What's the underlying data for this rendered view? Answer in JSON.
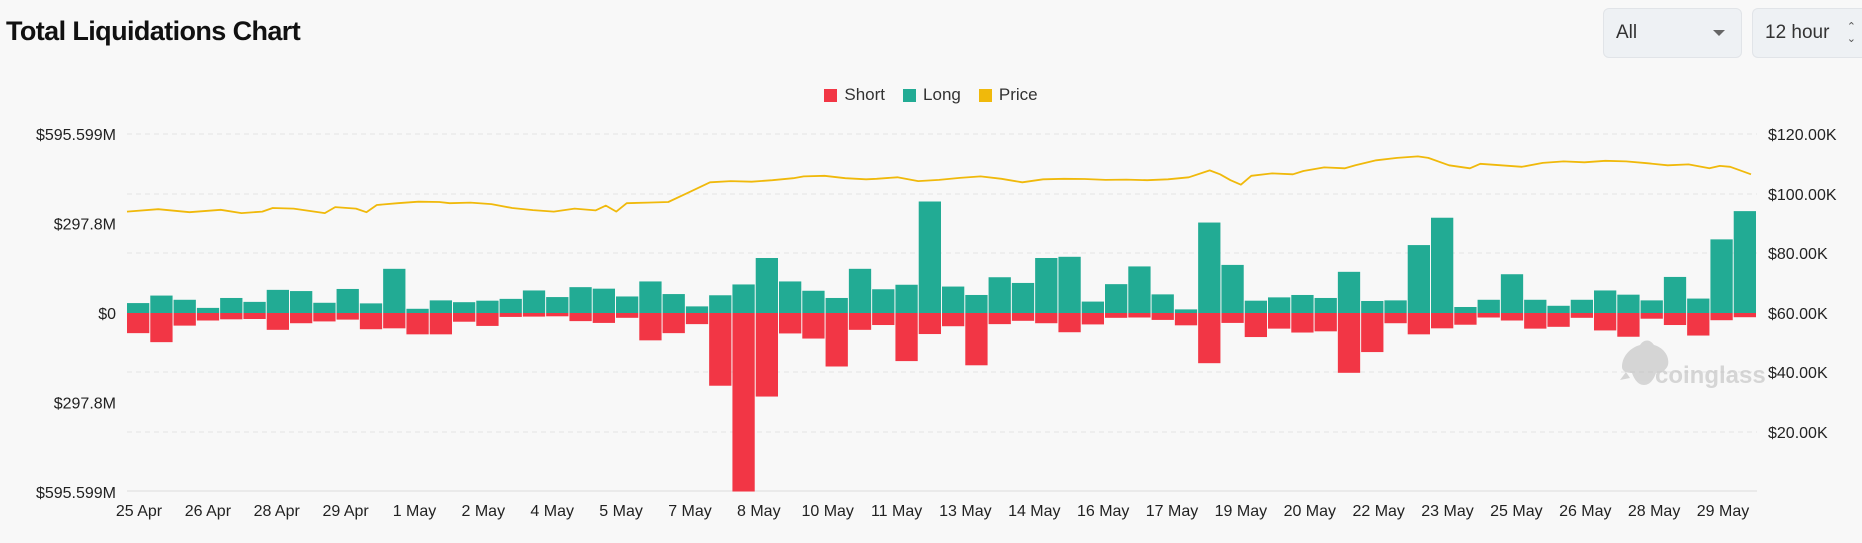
{
  "header": {
    "title": "Total Liquidations Chart"
  },
  "controls": {
    "range_value": "All",
    "interval_value": "12 hour"
  },
  "legend": [
    {
      "label": "Short",
      "color": "#f23645"
    },
    {
      "label": "Long",
      "color": "#22ab94"
    },
    {
      "label": "Price",
      "color": "#f0b90b"
    }
  ],
  "watermark": "coinglass",
  "chart_data": {
    "type": "bar",
    "title": "Total Liquidations Chart",
    "left_axis_ticks": [
      "$595.599M",
      "$297.8M",
      "$0",
      "$297.8M",
      "$595.599M"
    ],
    "right_axis_ticks": [
      "$120.00K",
      "$100.00K",
      "$80.00K",
      "$60.00K",
      "$40.00K",
      "$20.00K"
    ],
    "left_ylim": [
      -595.599,
      595.599
    ],
    "right_ylim": [
      0,
      120
    ],
    "right_axis_start": 20,
    "x_tick_labels": [
      "25 Apr",
      "26 Apr",
      "28 Apr",
      "29 Apr",
      "1 May",
      "2 May",
      "4 May",
      "5 May",
      "7 May",
      "8 May",
      "10 May",
      "11 May",
      "13 May",
      "14 May",
      "16 May",
      "17 May",
      "19 May",
      "20 May",
      "22 May",
      "23 May",
      "25 May",
      "26 May",
      "28 May",
      "29 May"
    ],
    "series": [
      {
        "name": "Long",
        "color": "#22ab94",
        "unit": "M USD",
        "values": [
          33,
          58,
          44,
          17,
          50,
          37,
          77,
          73,
          34,
          80,
          32,
          147,
          14,
          42,
          36,
          41,
          47,
          75,
          53,
          86,
          81,
          55,
          105,
          63,
          22,
          59,
          95,
          183,
          105,
          74,
          50,
          147,
          79,
          94,
          371,
          88,
          60,
          119,
          100,
          183,
          187,
          38,
          96,
          155,
          62,
          12,
          301,
          160,
          41,
          52,
          60,
          50,
          137,
          40,
          42,
          226,
          317,
          20,
          44,
          129,
          44,
          24,
          44,
          75,
          61,
          42,
          120,
          48,
          245,
          339
        ]
      },
      {
        "name": "Short",
        "color": "#f23645",
        "unit": "M USD",
        "values": [
          -67,
          -97,
          -42,
          -25,
          -21,
          -20,
          -56,
          -34,
          -28,
          -22,
          -54,
          -51,
          -71,
          -71,
          -29,
          -43,
          -13,
          -12,
          -11,
          -27,
          -33,
          -16,
          -91,
          -67,
          -37,
          -242,
          -594,
          -278,
          -68,
          -85,
          -178,
          -56,
          -40,
          -160,
          -70,
          -44,
          -174,
          -37,
          -26,
          -34,
          -64,
          -38,
          -16,
          -15,
          -23,
          -41,
          -167,
          -33,
          -80,
          -52,
          -65,
          -61,
          -199,
          -130,
          -34,
          -71,
          -51,
          -39,
          -15,
          -25,
          -52,
          -46,
          -16,
          -58,
          -79,
          -19,
          -40,
          -75,
          -24,
          -14
        ]
      },
      {
        "name": "Price",
        "color": "#f0b90b",
        "unit": "K USD",
        "points": [
          [
            0,
            94.0
          ],
          [
            3,
            94.8
          ],
          [
            6,
            93.8
          ],
          [
            9,
            94.6
          ],
          [
            11,
            93.5
          ],
          [
            13,
            94.0
          ],
          [
            14,
            95.2
          ],
          [
            16,
            95.0
          ],
          [
            19,
            93.5
          ],
          [
            20,
            95.5
          ],
          [
            22,
            95.0
          ],
          [
            23,
            93.8
          ],
          [
            24,
            96.2
          ],
          [
            26,
            96.8
          ],
          [
            28,
            97.3
          ],
          [
            30,
            97.2
          ],
          [
            31,
            96.8
          ],
          [
            33,
            97.0
          ],
          [
            35,
            96.5
          ],
          [
            37,
            95.2
          ],
          [
            39,
            94.5
          ],
          [
            41,
            94.0
          ],
          [
            43,
            95.0
          ],
          [
            45,
            94.4
          ],
          [
            46,
            96.0
          ],
          [
            47,
            94.0
          ],
          [
            48,
            96.8
          ],
          [
            50,
            97.0
          ],
          [
            52,
            97.2
          ],
          [
            54,
            100.5
          ],
          [
            56,
            103.8
          ],
          [
            58,
            104.2
          ],
          [
            60,
            104.0
          ],
          [
            62,
            104.5
          ],
          [
            64,
            105.2
          ],
          [
            65,
            105.8
          ],
          [
            67,
            106.0
          ],
          [
            69,
            105.2
          ],
          [
            71,
            104.8
          ],
          [
            72,
            105.0
          ],
          [
            74,
            105.5
          ],
          [
            76,
            104.2
          ],
          [
            78,
            104.6
          ],
          [
            80,
            105.3
          ],
          [
            82,
            105.8
          ],
          [
            84,
            105.0
          ],
          [
            86,
            103.8
          ],
          [
            88,
            104.8
          ],
          [
            90,
            105.0
          ],
          [
            92,
            104.9
          ],
          [
            94,
            104.6
          ],
          [
            96,
            104.7
          ],
          [
            98,
            104.5
          ],
          [
            100,
            104.8
          ],
          [
            102,
            105.5
          ],
          [
            104,
            107.8
          ],
          [
            105,
            106.5
          ],
          [
            106,
            104.5
          ],
          [
            107,
            103.0
          ],
          [
            108,
            106.0
          ],
          [
            110,
            106.8
          ],
          [
            112,
            106.5
          ],
          [
            113,
            107.6
          ],
          [
            115,
            108.8
          ],
          [
            117,
            108.5
          ],
          [
            118,
            109.5
          ],
          [
            120,
            111.2
          ],
          [
            122,
            112.0
          ],
          [
            124,
            112.5
          ],
          [
            125,
            112.0
          ],
          [
            127,
            109.5
          ],
          [
            129,
            108.5
          ],
          [
            130,
            110.0
          ],
          [
            132,
            109.5
          ],
          [
            134,
            109.0
          ],
          [
            136,
            110.3
          ],
          [
            138,
            110.8
          ],
          [
            140,
            110.5
          ],
          [
            142,
            111.0
          ],
          [
            144,
            110.8
          ],
          [
            146,
            110.2
          ],
          [
            148,
            109.5
          ],
          [
            150,
            109.8
          ],
          [
            152,
            108.5
          ],
          [
            153,
            109.3
          ],
          [
            154,
            109.0
          ],
          [
            156,
            106.5
          ]
        ]
      }
    ]
  }
}
